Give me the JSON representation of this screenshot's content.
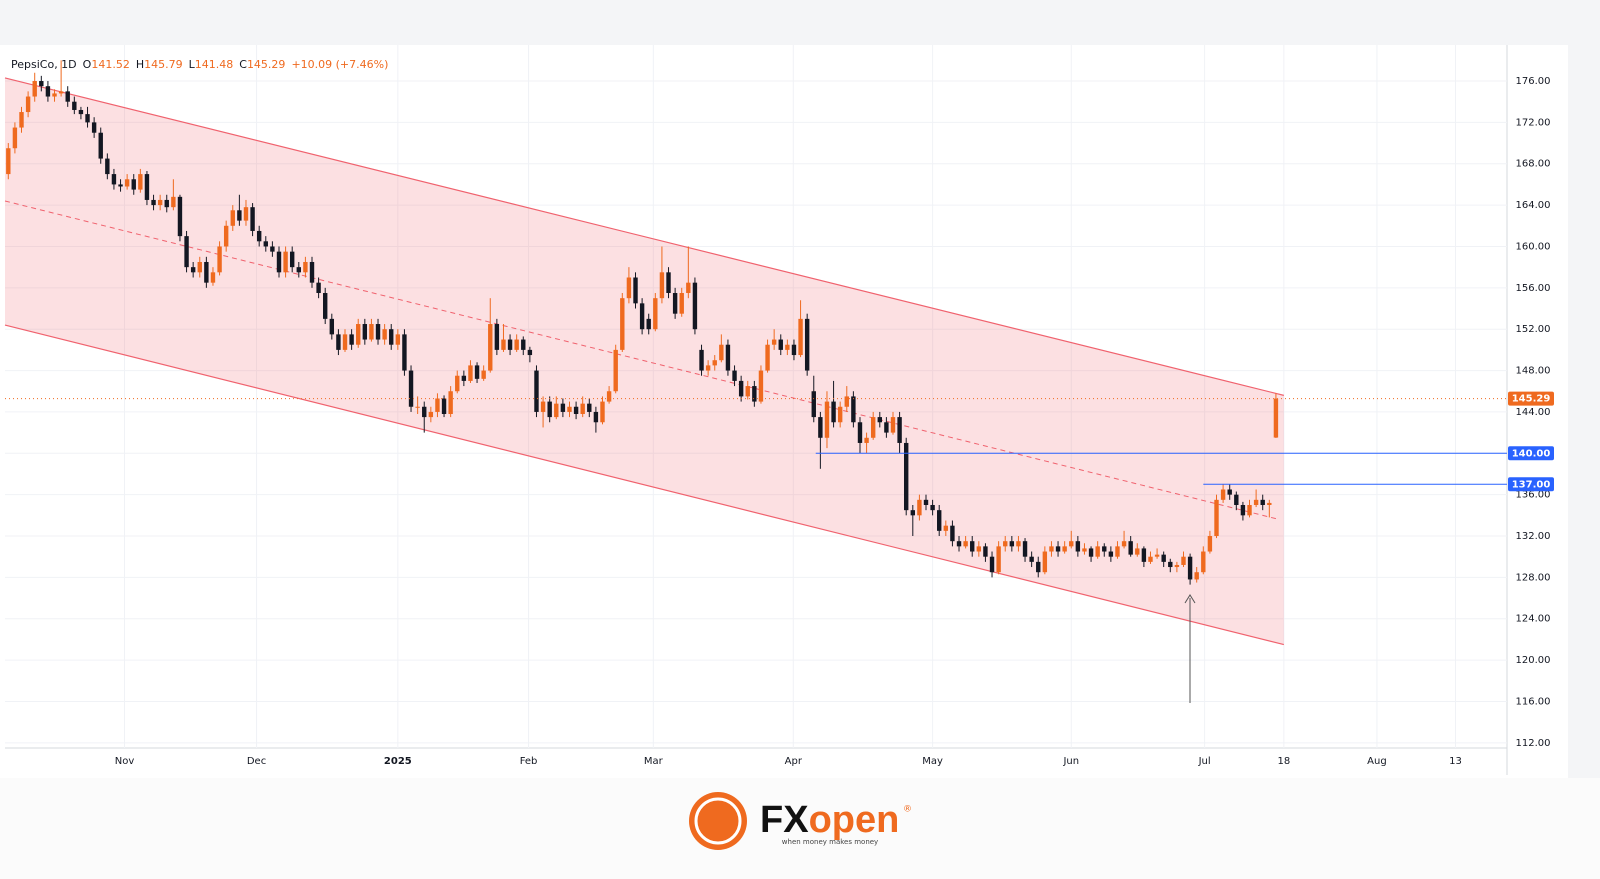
{
  "chart_data": {
    "type": "candlestick",
    "header": {
      "name": "PepsiCo, 1D",
      "labels": [
        "O",
        "H",
        "L",
        "C"
      ],
      "change_label": "+10.09 (+7.46%)"
    },
    "up_color": "#ef6a1f",
    "down_color": "#131722",
    "xlim": [
      -0.5,
      227
    ],
    "ylim": [
      111.5,
      179
    ],
    "grid": true,
    "xticks": [
      {
        "value": 17.6,
        "label": "Nov"
      },
      {
        "value": 37.6,
        "label": "Dec"
      },
      {
        "value": 59,
        "label": "2025"
      },
      {
        "value": 78.8,
        "label": "Feb"
      },
      {
        "value": 97.7,
        "label": "Mar"
      },
      {
        "value": 118.9,
        "label": "Apr"
      },
      {
        "value": 140,
        "label": "May"
      },
      {
        "value": 161,
        "label": "Jun"
      },
      {
        "value": 181.2,
        "label": "Jul"
      },
      {
        "value": 193.2,
        "label": "18"
      },
      {
        "value": 207.3,
        "label": "Aug"
      },
      {
        "value": 219.2,
        "label": "13"
      }
    ],
    "yticks": [
      {
        "value": 112,
        "label": "112.00"
      },
      {
        "value": 116,
        "label": "116.00"
      },
      {
        "value": 120,
        "label": "120.00"
      },
      {
        "value": 124,
        "label": "124.00"
      },
      {
        "value": 128,
        "label": "128.00"
      },
      {
        "value": 132,
        "label": "132.00"
      },
      {
        "value": 136,
        "label": "136.00"
      },
      {
        "value": 140,
        "label": "140.00"
      },
      {
        "value": 144,
        "label": "144.00"
      },
      {
        "value": 148,
        "label": "148.00"
      },
      {
        "value": 152,
        "label": "152.00"
      },
      {
        "value": 156,
        "label": "156.00"
      },
      {
        "value": 160,
        "label": "160.00"
      },
      {
        "value": 164,
        "label": "164.00"
      },
      {
        "value": 168,
        "label": "168.00"
      },
      {
        "value": 172,
        "label": "172.00"
      },
      {
        "value": 176,
        "label": "176.00"
      }
    ],
    "channel": {
      "color": "#f0626e",
      "upper": [
        [
          -0.5,
          176.3
        ],
        [
          193.2,
          145.6
        ]
      ],
      "middle": [
        [
          -0.5,
          164.4
        ],
        [
          192.5,
          133.6
        ]
      ],
      "lower": [
        [
          -0.5,
          152.4
        ],
        [
          193.2,
          121.5
        ]
      ]
    },
    "levels": [
      {
        "value": 140,
        "label": "140.00",
        "from": 122.3,
        "color": "#2962ff"
      },
      {
        "value": 137,
        "label": "137.00",
        "from": 181,
        "color": "#2962ff"
      }
    ],
    "current_price": {
      "value": 145.29,
      "label": "145.29",
      "color": "#ef6a1f"
    },
    "candles": [
      [
        167,
        170,
        166.5,
        169.5
      ],
      [
        169.5,
        172,
        169,
        171.5
      ],
      [
        171.5,
        173.5,
        171,
        173
      ],
      [
        173,
        175,
        172.5,
        174.5
      ],
      [
        174.5,
        176.8,
        174,
        176
      ],
      [
        176,
        176.5,
        175,
        175.5
      ],
      [
        175.5,
        176,
        174,
        174.5
      ],
      [
        174.5,
        175.2,
        174,
        174.8
      ],
      [
        174.8,
        178,
        174.5,
        175
      ],
      [
        175,
        175.5,
        173.5,
        174
      ],
      [
        174,
        174.5,
        172.8,
        173.2
      ],
      [
        173.2,
        173.5,
        172.3,
        172.8
      ],
      [
        172.8,
        173.5,
        171.5,
        172
      ],
      [
        172,
        172.5,
        170.5,
        171
      ],
      [
        171,
        171.5,
        168,
        168.5
      ],
      [
        168.5,
        169,
        166.5,
        167
      ],
      [
        167,
        167.5,
        165.5,
        166
      ],
      [
        166,
        166.5,
        165.3,
        165.8
      ],
      [
        165.8,
        167,
        165.5,
        166.5
      ],
      [
        166.5,
        167,
        165,
        165.5
      ],
      [
        165.5,
        167.5,
        165.2,
        167
      ],
      [
        167,
        167.3,
        164,
        164.5
      ],
      [
        164.5,
        165,
        163.5,
        164
      ],
      [
        164,
        165,
        163.5,
        164.5
      ],
      [
        164.5,
        165,
        163.3,
        163.8
      ],
      [
        163.8,
        166.5,
        163.5,
        164.8
      ],
      [
        164.8,
        165,
        160.5,
        161
      ],
      [
        161,
        161.5,
        157.5,
        158
      ],
      [
        158,
        158.5,
        157,
        157.5
      ],
      [
        157.5,
        159,
        157,
        158.5
      ],
      [
        158.5,
        159,
        156,
        156.5
      ],
      [
        156.5,
        158,
        156.2,
        157.5
      ],
      [
        157.5,
        160.5,
        157.2,
        160
      ],
      [
        160,
        162.5,
        159.5,
        162
      ],
      [
        162,
        164,
        161.5,
        163.5
      ],
      [
        163.5,
        165,
        162,
        162.5
      ],
      [
        162.5,
        164.5,
        162,
        163.8
      ],
      [
        163.8,
        164.2,
        161,
        161.5
      ],
      [
        161.5,
        162,
        160,
        160.5
      ],
      [
        160.5,
        161,
        159.5,
        160
      ],
      [
        160,
        160.5,
        159,
        159.5
      ],
      [
        159.5,
        160,
        157,
        157.5
      ],
      [
        157.5,
        160,
        157,
        159.5
      ],
      [
        159.5,
        160,
        157.5,
        158
      ],
      [
        158,
        158.5,
        157,
        157.5
      ],
      [
        157.5,
        159,
        157,
        158.5
      ],
      [
        158.5,
        159,
        156,
        156.5
      ],
      [
        156.5,
        157,
        155,
        155.5
      ],
      [
        155.5,
        156,
        152.5,
        153
      ],
      [
        153,
        153.5,
        151,
        151.5
      ],
      [
        151.5,
        152,
        149.5,
        150
      ],
      [
        150,
        152,
        149.8,
        151.5
      ],
      [
        151.5,
        152,
        150,
        150.5
      ],
      [
        150.5,
        153,
        150.2,
        152.5
      ],
      [
        152.5,
        153,
        150.5,
        151
      ],
      [
        151,
        153,
        150.8,
        152.5
      ],
      [
        152.5,
        153,
        150.5,
        151
      ],
      [
        151,
        152.5,
        150.5,
        152
      ],
      [
        152,
        152.5,
        150,
        150.5
      ],
      [
        150.5,
        152,
        150,
        151.5
      ],
      [
        151.5,
        152,
        147.5,
        148
      ],
      [
        148,
        148.5,
        144,
        144.5
      ],
      [
        144.5,
        145.5,
        143.8,
        144.5
      ],
      [
        144.5,
        145,
        142,
        143.5
      ],
      [
        143.5,
        144.5,
        143,
        144
      ],
      [
        144,
        145.8,
        143.5,
        145.3
      ],
      [
        145.3,
        145.6,
        143.5,
        143.8
      ],
      [
        143.8,
        146.5,
        143.5,
        146
      ],
      [
        146,
        148,
        145.8,
        147.5
      ],
      [
        147.5,
        148,
        146.5,
        147
      ],
      [
        147,
        149,
        146.8,
        148.5
      ],
      [
        148.5,
        148.8,
        146.8,
        147.2
      ],
      [
        147.2,
        148.5,
        147,
        148
      ],
      [
        148,
        155,
        147.8,
        152.5
      ],
      [
        152.5,
        153,
        149.5,
        150
      ],
      [
        150,
        152.5,
        149.8,
        151
      ],
      [
        151,
        151.5,
        149.5,
        150
      ],
      [
        150,
        151.5,
        149.8,
        151
      ],
      [
        151,
        151.3,
        149.5,
        150
      ],
      [
        150,
        150.3,
        148.8,
        149.5
      ],
      [
        148,
        148.5,
        143.5,
        144
      ],
      [
        144,
        145.5,
        142.5,
        145
      ],
      [
        145,
        145.5,
        143,
        143.5
      ],
      [
        143.5,
        145.5,
        143.3,
        144.8
      ],
      [
        144.8,
        145.3,
        143.5,
        144
      ],
      [
        144,
        145,
        143.5,
        144.5
      ],
      [
        144.5,
        145,
        143.3,
        143.8
      ],
      [
        143.8,
        145.5,
        143.5,
        144.8
      ],
      [
        144.8,
        145.3,
        143.5,
        144
      ],
      [
        144,
        144.5,
        142,
        143
      ],
      [
        143,
        145.5,
        142.8,
        145
      ],
      [
        145,
        146.5,
        144.8,
        146
      ],
      [
        146,
        150.5,
        145.8,
        150
      ],
      [
        150,
        155.5,
        149.8,
        155
      ],
      [
        155,
        158,
        154.5,
        157
      ],
      [
        157,
        157.5,
        154,
        154.5
      ],
      [
        154.5,
        155,
        151.5,
        152
      ],
      [
        153,
        153.5,
        151.5,
        152
      ],
      [
        152,
        155.5,
        151.8,
        155
      ],
      [
        155,
        160,
        154.5,
        157.5
      ],
      [
        157.5,
        158,
        155,
        155.5
      ],
      [
        155.5,
        156,
        153,
        153.5
      ],
      [
        153.5,
        156,
        153.2,
        155.5
      ],
      [
        155.5,
        160,
        155,
        156.5
      ],
      [
        156.5,
        157,
        151.5,
        152
      ],
      [
        150,
        150.5,
        147.5,
        148
      ],
      [
        148,
        149,
        147.5,
        148.5
      ],
      [
        148.5,
        149.5,
        148,
        149
      ],
      [
        149,
        151.5,
        148.8,
        150.5
      ],
      [
        150.5,
        151,
        147.5,
        148
      ],
      [
        148,
        148.5,
        146.5,
        147
      ],
      [
        147,
        147.5,
        145,
        145.5
      ],
      [
        145.5,
        147,
        145.2,
        146.5
      ],
      [
        146.5,
        147,
        144.5,
        145
      ],
      [
        145,
        148.5,
        144.8,
        148
      ],
      [
        148,
        151,
        147.8,
        150.5
      ],
      [
        150.5,
        152,
        150,
        151
      ],
      [
        151,
        151.5,
        149.5,
        150
      ],
      [
        150,
        151,
        149.5,
        150.5
      ],
      [
        150.5,
        151,
        149,
        149.5
      ],
      [
        149.5,
        154.8,
        149.3,
        153
      ],
      [
        153,
        153.5,
        147.5,
        148
      ],
      [
        146,
        147.5,
        143,
        143.5
      ],
      [
        143.5,
        144,
        138.5,
        141.5
      ],
      [
        141.5,
        146,
        140.5,
        145
      ],
      [
        145,
        147,
        142.5,
        143
      ],
      [
        143,
        145,
        142.5,
        144.5
      ],
      [
        144.5,
        146.5,
        144,
        145.5
      ],
      [
        145.5,
        146,
        142.5,
        143
      ],
      [
        143,
        143.5,
        140,
        141
      ],
      [
        141,
        142,
        140,
        141.5
      ],
      [
        141.5,
        144,
        141.3,
        143.5
      ],
      [
        143.5,
        144,
        142.5,
        143
      ],
      [
        143,
        143.5,
        141.5,
        142
      ],
      [
        142,
        144,
        141.8,
        143.5
      ],
      [
        143.5,
        144,
        140,
        141
      ],
      [
        141,
        141.5,
        134,
        134.5
      ],
      [
        134.5,
        135,
        132,
        134
      ],
      [
        134,
        136,
        133.5,
        135.5
      ],
      [
        135.5,
        136,
        134.5,
        135
      ],
      [
        135,
        135.5,
        134,
        134.5
      ],
      [
        134.5,
        135,
        132,
        132.5
      ],
      [
        132.5,
        133.5,
        132,
        133
      ],
      [
        133,
        133.5,
        131,
        131.5
      ],
      [
        131.5,
        132,
        130.5,
        131
      ],
      [
        131,
        132,
        130.8,
        131.5
      ],
      [
        131.5,
        132,
        130,
        130.5
      ],
      [
        130.5,
        131.5,
        130,
        131
      ],
      [
        131,
        131.3,
        129.5,
        130
      ],
      [
        130,
        130.5,
        128,
        128.5
      ],
      [
        128.5,
        131.5,
        128.3,
        131
      ],
      [
        131,
        132,
        130.5,
        131.5
      ],
      [
        131.5,
        132,
        130.5,
        131
      ],
      [
        131,
        132,
        130.5,
        131.5
      ],
      [
        131.5,
        131.8,
        129.5,
        130
      ],
      [
        130,
        130.5,
        129,
        129.5
      ],
      [
        129.5,
        130,
        128,
        128.5
      ],
      [
        128.5,
        131,
        128.3,
        130.5
      ],
      [
        130.5,
        131.5,
        130,
        131
      ],
      [
        131,
        131.5,
        130,
        130.5
      ],
      [
        130.5,
        131.5,
        130.3,
        131
      ],
      [
        131,
        132.5,
        130.8,
        131.5
      ],
      [
        131.5,
        132,
        130,
        130.5
      ],
      [
        130.5,
        131.3,
        130.2,
        130.8
      ],
      [
        130.8,
        131,
        129.5,
        130
      ],
      [
        130,
        131.5,
        129.8,
        131
      ],
      [
        131,
        131.3,
        130,
        130.5
      ],
      [
        130.5,
        131,
        129.5,
        130
      ],
      [
        130,
        131.5,
        129.8,
        131
      ],
      [
        131,
        132.5,
        130.8,
        131.5
      ],
      [
        131.5,
        132,
        130,
        130.2
      ],
      [
        130.2,
        131.3,
        130,
        130.8
      ],
      [
        130.8,
        131,
        129,
        129.5
      ],
      [
        129.5,
        130.5,
        129.3,
        130
      ],
      [
        130,
        130.8,
        129.8,
        130.2
      ],
      [
        130.2,
        130.5,
        129,
        129.5
      ],
      [
        129.5,
        129.8,
        128.5,
        129
      ],
      [
        129,
        129.5,
        128.5,
        129.2
      ],
      [
        129.2,
        130.5,
        129,
        130
      ],
      [
        130,
        130.3,
        127.3,
        127.8
      ],
      [
        127.8,
        129,
        127.5,
        128.5
      ],
      [
        128.5,
        131,
        128.3,
        130.5
      ],
      [
        130.5,
        132.5,
        130.3,
        132
      ],
      [
        132,
        136,
        131.8,
        135.5
      ],
      [
        135.5,
        137,
        135.2,
        136.5
      ],
      [
        136.5,
        137,
        135.5,
        136
      ],
      [
        136,
        136.3,
        134.5,
        135
      ],
      [
        135,
        135.3,
        133.5,
        134
      ],
      [
        134,
        135.5,
        133.8,
        135
      ],
      [
        135,
        136.5,
        134.8,
        135.5
      ],
      [
        135.5,
        136,
        134.5,
        135
      ],
      [
        135,
        135.5,
        133.8,
        135.2
      ],
      [
        141.52,
        145.79,
        141.48,
        145.29
      ]
    ]
  },
  "footer": {
    "brand_fx": "FX",
    "brand_open": "open",
    "reg": "®",
    "tagline": "when money makes money"
  }
}
